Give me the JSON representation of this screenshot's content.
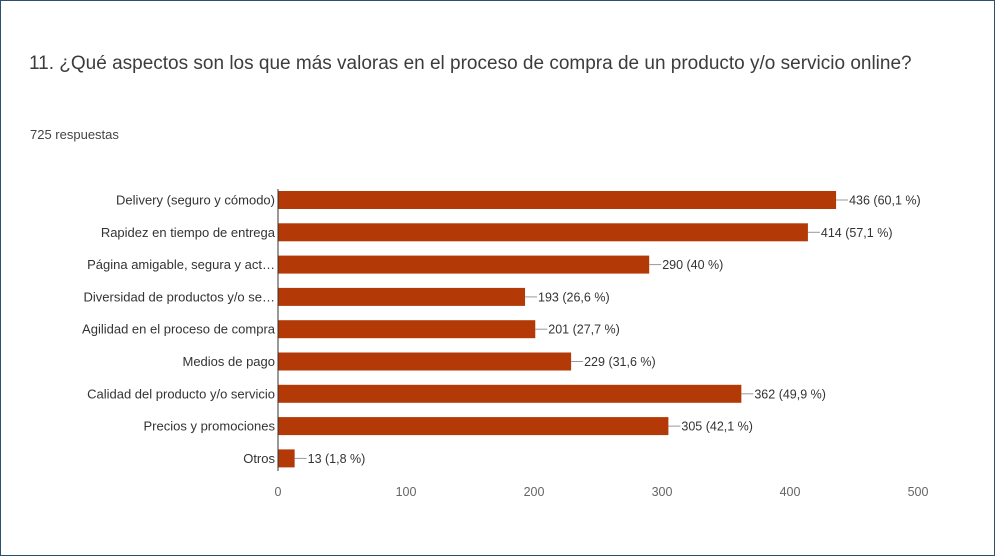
{
  "question": {
    "title": "11. ¿Qué aspectos son los que más valoras en el proceso de compra de un producto y/o servicio online?",
    "responses": "725 respuestas"
  },
  "colors": {
    "bar": "#b33a06",
    "axis": "#333333",
    "leader": "#999999",
    "frame": "#2f4f6f"
  },
  "chart_data": {
    "type": "bar",
    "orientation": "horizontal",
    "title": "",
    "xlabel": "",
    "ylabel": "",
    "xlim": [
      0,
      500
    ],
    "ticks": [
      0,
      100,
      200,
      300,
      400,
      500
    ],
    "grid": false,
    "categories": [
      "Delivery (seguro y cómodo)",
      "Rapidez en tiempo de entrega",
      "Página amigable, segura y act…",
      "Diversidad de productos y/o se…",
      "Agilidad en el proceso de compra",
      "Medios de pago",
      "Calidad del producto y/o servicio",
      "Precios y promociones",
      "Otros"
    ],
    "values": [
      436,
      414,
      290,
      193,
      201,
      229,
      362,
      305,
      13
    ],
    "value_labels": [
      "436 (60,1 %)",
      "414 (57,1 %)",
      "290 (40 %)",
      "193 (26,6 %)",
      "201 (27,7 %)",
      "229 (31,6 %)",
      "362 (49,9 %)",
      "305 (42,1 %)",
      "13 (1,8 %)"
    ]
  }
}
